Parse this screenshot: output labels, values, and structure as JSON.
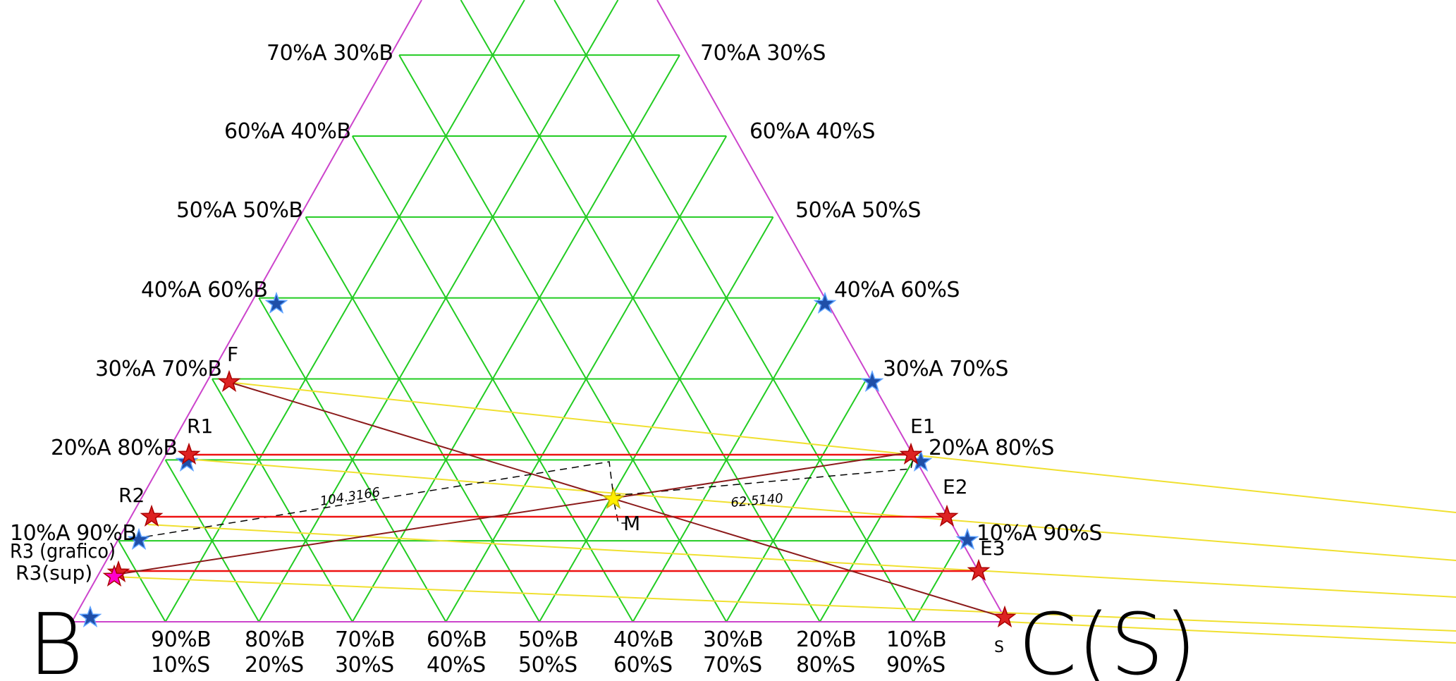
{
  "diagram": {
    "left_edge_labels": [
      "70%A  30%B",
      "60%A  40%B",
      "50%A  50%B",
      "40%A  60%B",
      "30%A  70%B",
      "20%A  80%B",
      "10%A  90%B"
    ],
    "right_edge_labels": [
      "70%A  30%S",
      "60%A  40%S",
      "50%A  50%S",
      "40%A  60%S",
      "30%A  70%S",
      "20%A  80%S",
      "10%A  90%S"
    ],
    "base_labels_top": [
      "90%B",
      "80%B",
      "70%B",
      "60%B",
      "50%B",
      "40%B",
      "30%B",
      "20%B",
      "10%B"
    ],
    "base_labels_bottom": [
      "10%S",
      "20%S",
      "30%S",
      "40%S",
      "50%S",
      "60%S",
      "70%S",
      "80%S",
      "90%S"
    ],
    "vertex_labels": {
      "left": "B",
      "right": "C(S)",
      "right_sub": "S"
    },
    "points": {
      "F": "F",
      "M": "M",
      "R1": "R1",
      "R2": "R2",
      "R3_graf": "R3  (grafico)",
      "R3_sup": "R3(sup)",
      "E1": "E1",
      "E2": "E2",
      "E3": "E3"
    },
    "dimensions": {
      "left": "104.3166",
      "right": "62.5140"
    },
    "colors": {
      "grid": "#22cc22",
      "edge": "#cc44cc",
      "tie_line": "#ee1111",
      "operating_line": "#8b1a1a",
      "yellow_line": "#f0e030",
      "star_blue": "#1f4fa8",
      "star_red": "#dd2222",
      "star_magenta": "#ff00cc",
      "star_yellow": "#ffee00"
    }
  }
}
